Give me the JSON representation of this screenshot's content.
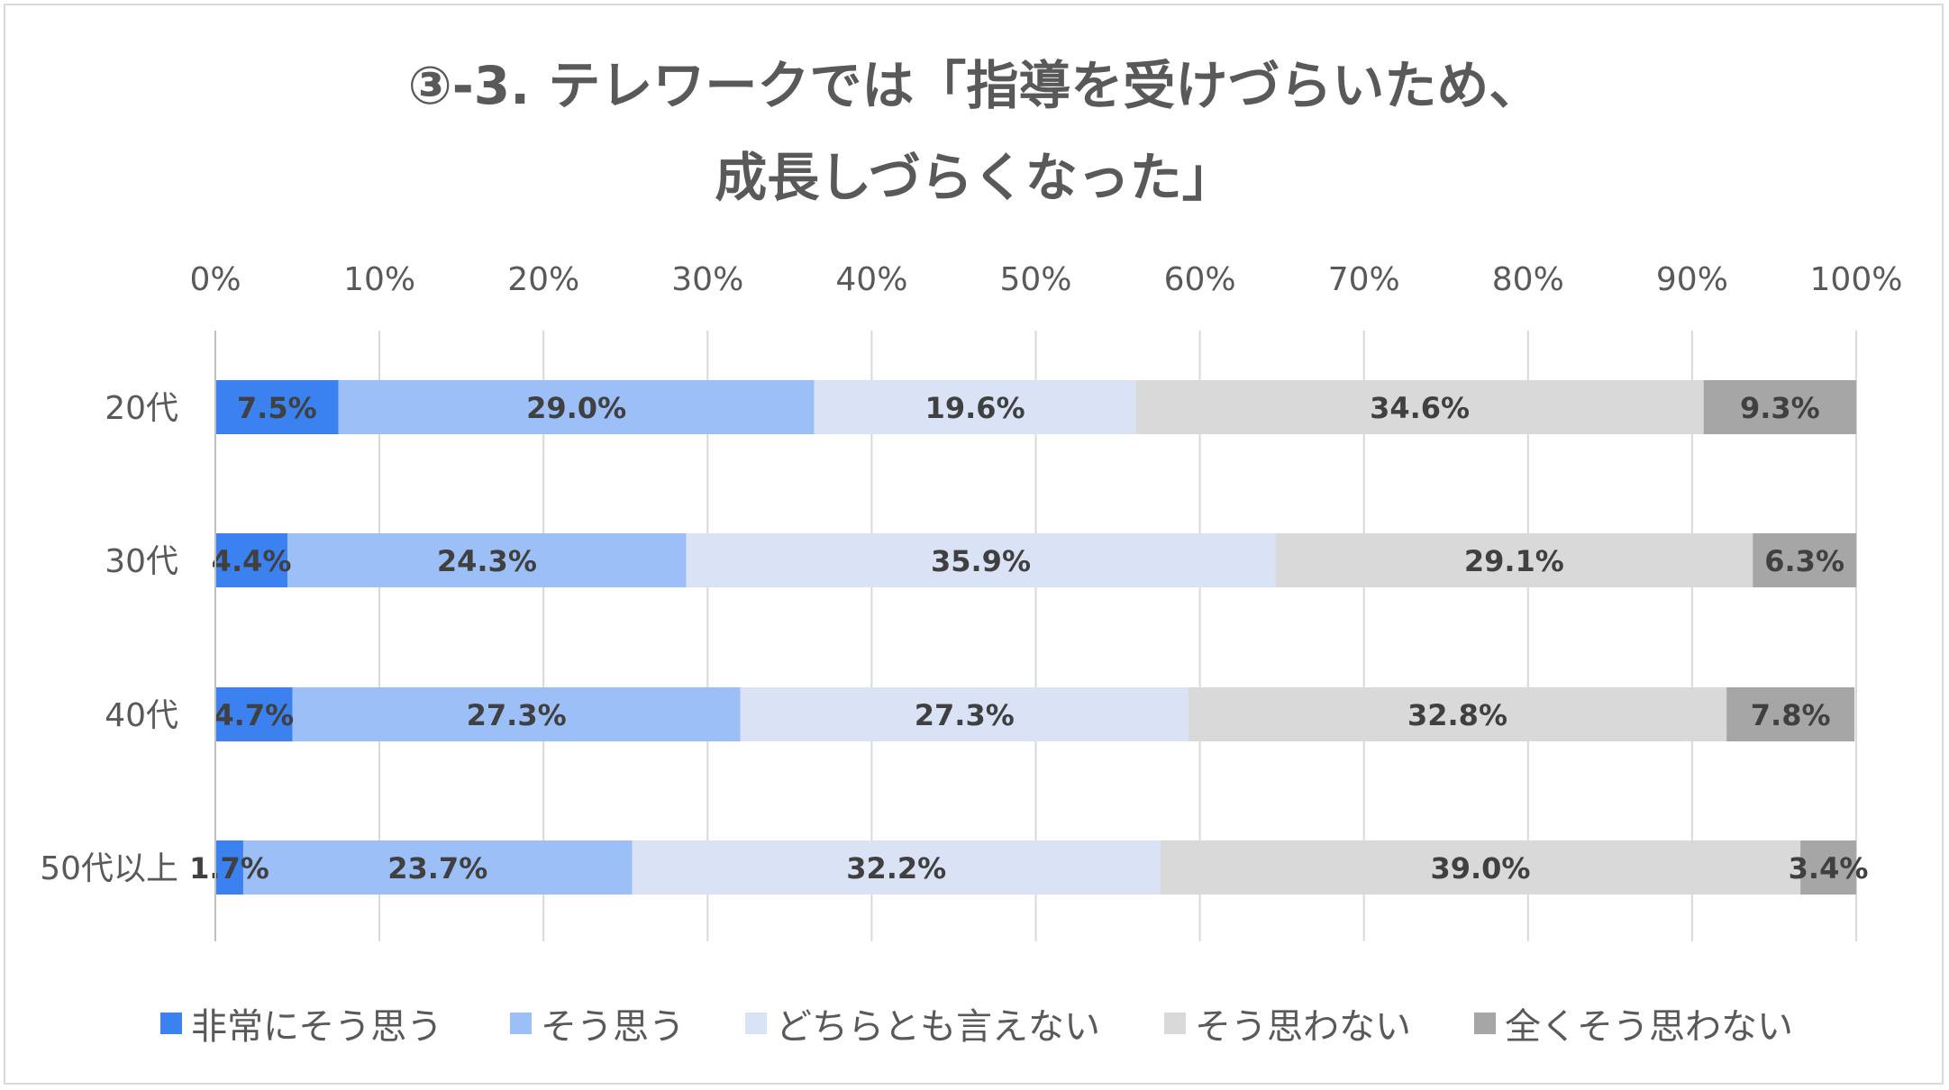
{
  "chart_data": {
    "type": "bar",
    "orientation": "horizontal",
    "stacked": true,
    "title_line1": "③-3. テレワークでは「指導を受けづらいため、",
    "title_line2": "成長しづらくなった」",
    "categories": [
      "20代",
      "30代",
      "40代",
      "50代以上"
    ],
    "x_ticks": [
      "0%",
      "10%",
      "20%",
      "30%",
      "40%",
      "50%",
      "60%",
      "70%",
      "80%",
      "90%",
      "100%"
    ],
    "xlim": [
      0,
      100
    ],
    "grid": true,
    "legend_position": "bottom",
    "series": [
      {
        "name": "非常にそう思う",
        "color": "#3b82f0",
        "values": [
          7.5,
          4.4,
          4.7,
          1.7
        ],
        "labels": [
          "7.5%",
          "4.4%",
          "4.7%",
          "1.7%"
        ]
      },
      {
        "name": "そう思う",
        "color": "#9dbff7",
        "values": [
          29.0,
          24.3,
          27.3,
          23.7
        ],
        "labels": [
          "29.0%",
          "24.3%",
          "27.3%",
          "23.7%"
        ]
      },
      {
        "name": "どちらとも言えない",
        "color": "#dae3f5",
        "values": [
          19.6,
          35.9,
          27.3,
          32.2
        ],
        "labels": [
          "19.6%",
          "35.9%",
          "27.3%",
          "32.2%"
        ]
      },
      {
        "name": "そう思わない",
        "color": "#d9d9d9",
        "values": [
          34.6,
          29.1,
          32.8,
          39.0
        ],
        "labels": [
          "34.6%",
          "29.1%",
          "32.8%",
          "39.0%"
        ]
      },
      {
        "name": "全くそう思わない",
        "color": "#a6a6a6",
        "values": [
          9.3,
          6.3,
          7.8,
          3.4
        ],
        "labels": [
          "9.3%",
          "6.3%",
          "7.8%",
          "3.4%"
        ]
      }
    ]
  }
}
